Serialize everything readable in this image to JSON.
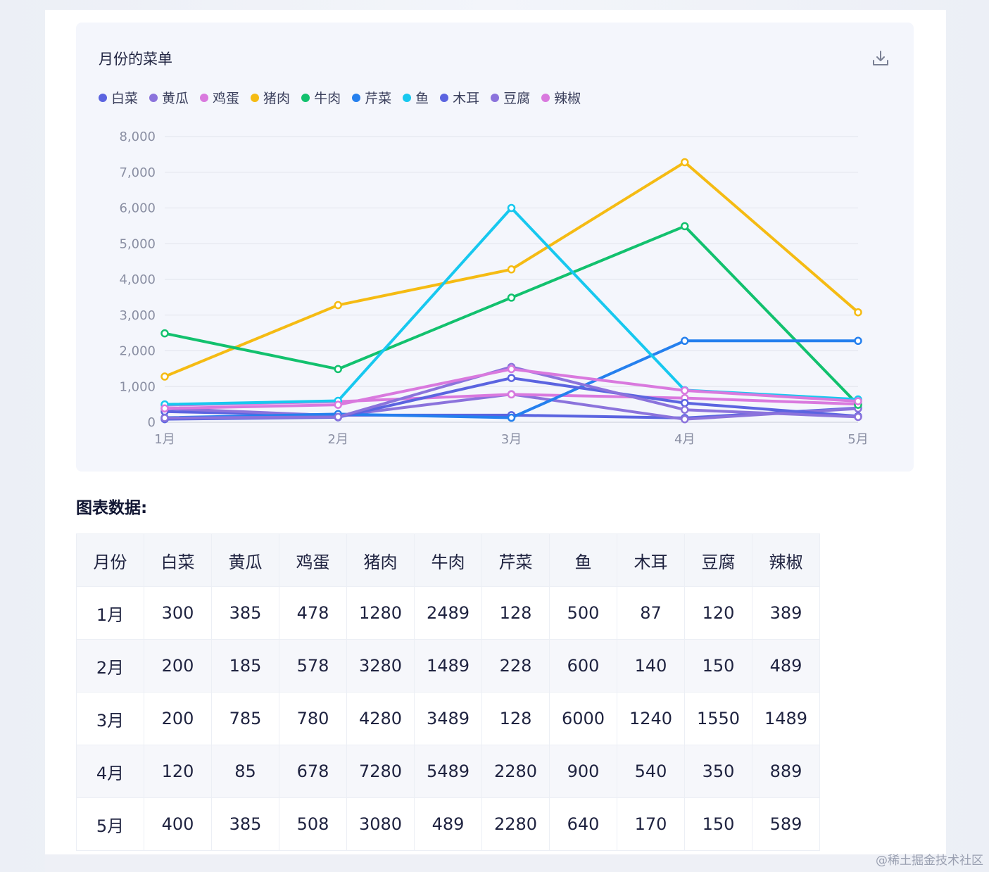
{
  "card": {
    "title": "月份的菜单"
  },
  "download_icon": "download-icon",
  "chart_data": {
    "type": "line",
    "title": "月份的菜单",
    "categories": [
      "1月",
      "2月",
      "3月",
      "4月",
      "5月"
    ],
    "ylim": [
      0,
      8000
    ],
    "yticks": [
      "0",
      "1,000",
      "2,000",
      "3,000",
      "4,000",
      "5,000",
      "6,000",
      "7,000",
      "8,000"
    ],
    "grid": true,
    "legend_position": "top-left",
    "series": [
      {
        "name": "白菜",
        "color": "#5b64e0",
        "values": [
          300,
          200,
          200,
          120,
          400
        ]
      },
      {
        "name": "黄瓜",
        "color": "#8b73dc",
        "values": [
          385,
          185,
          785,
          85,
          385
        ]
      },
      {
        "name": "鸡蛋",
        "color": "#d979de",
        "values": [
          478,
          578,
          780,
          678,
          508
        ]
      },
      {
        "name": "猪肉",
        "color": "#f5bb13",
        "values": [
          1280,
          3280,
          4280,
          7280,
          3080
        ]
      },
      {
        "name": "牛肉",
        "color": "#12c16e",
        "values": [
          2489,
          1489,
          3489,
          5489,
          489
        ]
      },
      {
        "name": "芹菜",
        "color": "#2580ee",
        "values": [
          128,
          228,
          128,
          2280,
          2280
        ]
      },
      {
        "name": "鱼",
        "color": "#17c8ef",
        "values": [
          500,
          600,
          6000,
          900,
          640
        ]
      },
      {
        "name": "木耳",
        "color": "#5b64e0",
        "values": [
          87,
          140,
          1240,
          540,
          170
        ]
      },
      {
        "name": "豆腐",
        "color": "#8b73dc",
        "values": [
          120,
          150,
          1550,
          350,
          150
        ]
      },
      {
        "name": "辣椒",
        "color": "#d979de",
        "values": [
          389,
          489,
          1489,
          889,
          589
        ]
      }
    ]
  },
  "table": {
    "title": "图表数据:",
    "headers": [
      "月份",
      "白菜",
      "黄瓜",
      "鸡蛋",
      "猪肉",
      "牛肉",
      "芹菜",
      "鱼",
      "木耳",
      "豆腐",
      "辣椒"
    ],
    "rows": [
      [
        "1月",
        "300",
        "385",
        "478",
        "1280",
        "2489",
        "128",
        "500",
        "87",
        "120",
        "389"
      ],
      [
        "2月",
        "200",
        "185",
        "578",
        "3280",
        "1489",
        "228",
        "600",
        "140",
        "150",
        "489"
      ],
      [
        "3月",
        "200",
        "785",
        "780",
        "4280",
        "3489",
        "128",
        "6000",
        "1240",
        "1550",
        "1489"
      ],
      [
        "4月",
        "120",
        "85",
        "678",
        "7280",
        "5489",
        "2280",
        "900",
        "540",
        "350",
        "889"
      ],
      [
        "5月",
        "400",
        "385",
        "508",
        "3080",
        "489",
        "2280",
        "640",
        "170",
        "150",
        "589"
      ]
    ]
  },
  "watermark": "@稀土掘金技术社区"
}
